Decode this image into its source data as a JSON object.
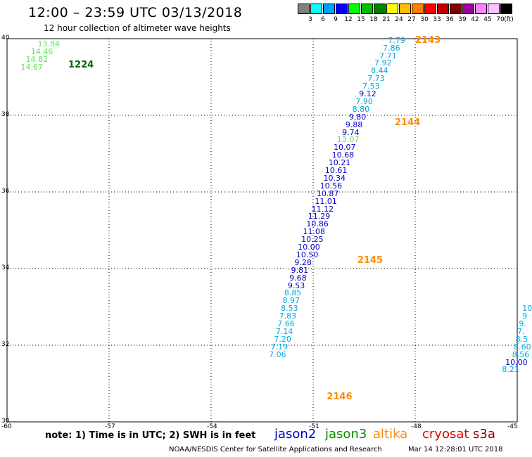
{
  "header": {
    "title": "12:00 – 23:59 UTC 03/13/2018",
    "subtitle": "12 hour collection of altimeter wave heights"
  },
  "colorbar": {
    "unit": "(ft)",
    "cells": [
      {
        "color": "#808080",
        "label": "3"
      },
      {
        "color": "#00ffff",
        "label": "6"
      },
      {
        "color": "#00a0ff",
        "label": "9"
      },
      {
        "color": "#0000ff",
        "label": "12"
      },
      {
        "color": "#00ff00",
        "label": "15"
      },
      {
        "color": "#00c000",
        "label": "18"
      },
      {
        "color": "#008000",
        "label": "21"
      },
      {
        "color": "#ffff00",
        "label": "24"
      },
      {
        "color": "#ffc000",
        "label": "27"
      },
      {
        "color": "#ff8000",
        "label": "30"
      },
      {
        "color": "#ff0000",
        "label": "33"
      },
      {
        "color": "#c00000",
        "label": "36"
      },
      {
        "color": "#800000",
        "label": "39"
      },
      {
        "color": "#a000a0",
        "label": "42"
      },
      {
        "color": "#ff80ff",
        "label": "45"
      },
      {
        "color": "#ffc0ff",
        "label": "70"
      },
      {
        "color": "#000000",
        "label": ""
      }
    ]
  },
  "axes": {
    "lon_ticks": [
      "-60",
      "-57",
      "-54",
      "-51",
      "-48",
      "-45"
    ],
    "lat_ticks": [
      "40",
      "38",
      "36",
      "34",
      "32",
      "30"
    ],
    "lon_range": [
      -60,
      -45
    ],
    "lat_range": [
      30,
      40
    ]
  },
  "colors": {
    "jason2": "#0000c8",
    "jason3": "#009000",
    "altika": "#ff8c00",
    "cryosat": "#e00000",
    "s3a": "#8b0000",
    "light_blue": "#00a8e0",
    "light_green": "#60e060",
    "dark_green": "#006400"
  },
  "pass_labels": [
    {
      "text": "1224",
      "lon": -58.2,
      "lat": 39.3,
      "color": "dark_green"
    },
    {
      "text": "2143",
      "lon": -48.0,
      "lat": 39.95,
      "color": "altika"
    },
    {
      "text": "2144",
      "lon": -48.6,
      "lat": 37.8,
      "color": "altika"
    },
    {
      "text": "2145",
      "lon": -49.7,
      "lat": 34.2,
      "color": "altika"
    },
    {
      "text": "2146",
      "lon": -50.6,
      "lat": 30.65,
      "color": "altika"
    }
  ],
  "readings": [
    {
      "value": "13.94",
      "lon": -59.1,
      "lat": 39.85,
      "color": "light_green"
    },
    {
      "value": "14.46",
      "lon": -59.3,
      "lat": 39.65,
      "color": "light_green"
    },
    {
      "value": "14.82",
      "lon": -59.45,
      "lat": 39.45,
      "color": "light_green"
    },
    {
      "value": "14.67",
      "lon": -59.6,
      "lat": 39.25,
      "color": "light_green"
    },
    {
      "value": "7.79",
      "lon": -48.8,
      "lat": 39.95,
      "color": "light_blue"
    },
    {
      "value": "7.86",
      "lon": -48.95,
      "lat": 39.75,
      "color": "light_blue"
    },
    {
      "value": "7.71",
      "lon": -49.05,
      "lat": 39.55,
      "color": "light_blue"
    },
    {
      "value": "7.92",
      "lon": -49.2,
      "lat": 39.35,
      "color": "light_blue"
    },
    {
      "value": "8.44",
      "lon": -49.3,
      "lat": 39.15,
      "color": "light_blue"
    },
    {
      "value": "7.73",
      "lon": -49.4,
      "lat": 38.95,
      "color": "light_blue"
    },
    {
      "value": "7.53",
      "lon": -49.55,
      "lat": 38.75,
      "color": "light_blue"
    },
    {
      "value": "9.12",
      "lon": -49.65,
      "lat": 38.55,
      "color": "jason2"
    },
    {
      "value": "7.90",
      "lon": -49.75,
      "lat": 38.35,
      "color": "light_blue"
    },
    {
      "value": "8.80",
      "lon": -49.85,
      "lat": 38.15,
      "color": "light_blue"
    },
    {
      "value": "9.80",
      "lon": -49.95,
      "lat": 37.95,
      "color": "jason2"
    },
    {
      "value": "9.88",
      "lon": -50.05,
      "lat": 37.75,
      "color": "jason2"
    },
    {
      "value": "9.74",
      "lon": -50.15,
      "lat": 37.55,
      "color": "jason2"
    },
    {
      "value": "13.07",
      "lon": -50.3,
      "lat": 37.35,
      "color": "light_green"
    },
    {
      "value": "10.07",
      "lon": -50.4,
      "lat": 37.15,
      "color": "jason2"
    },
    {
      "value": "10.68",
      "lon": -50.45,
      "lat": 36.95,
      "color": "jason2"
    },
    {
      "value": "10.21",
      "lon": -50.55,
      "lat": 36.75,
      "color": "jason2"
    },
    {
      "value": "10.61",
      "lon": -50.65,
      "lat": 36.55,
      "color": "jason2"
    },
    {
      "value": "10.34",
      "lon": -50.7,
      "lat": 36.35,
      "color": "jason2"
    },
    {
      "value": "10.56",
      "lon": -50.8,
      "lat": 36.15,
      "color": "jason2"
    },
    {
      "value": "10.87",
      "lon": -50.9,
      "lat": 35.95,
      "color": "jason2"
    },
    {
      "value": "11.01",
      "lon": -50.95,
      "lat": 35.75,
      "color": "jason2"
    },
    {
      "value": "11.12",
      "lon": -51.05,
      "lat": 35.55,
      "color": "jason2"
    },
    {
      "value": "11.29",
      "lon": -51.15,
      "lat": 35.35,
      "color": "jason2"
    },
    {
      "value": "10.86",
      "lon": -51.2,
      "lat": 35.15,
      "color": "jason2"
    },
    {
      "value": "11.08",
      "lon": -51.3,
      "lat": 34.95,
      "color": "jason2"
    },
    {
      "value": "10.25",
      "lon": -51.35,
      "lat": 34.75,
      "color": "jason2"
    },
    {
      "value": "10.00",
      "lon": -51.45,
      "lat": 34.55,
      "color": "jason2"
    },
    {
      "value": "10.50",
      "lon": -51.5,
      "lat": 34.35,
      "color": "jason2"
    },
    {
      "value": "9.28",
      "lon": -51.55,
      "lat": 34.15,
      "color": "jason2"
    },
    {
      "value": "9.81",
      "lon": -51.65,
      "lat": 33.95,
      "color": "jason2"
    },
    {
      "value": "9.68",
      "lon": -51.7,
      "lat": 33.75,
      "color": "jason2"
    },
    {
      "value": "9.53",
      "lon": -51.75,
      "lat": 33.55,
      "color": "jason2"
    },
    {
      "value": "8.85",
      "lon": -51.85,
      "lat": 33.35,
      "color": "light_blue"
    },
    {
      "value": "8.97",
      "lon": -51.9,
      "lat": 33.15,
      "color": "light_blue"
    },
    {
      "value": "8.53",
      "lon": -51.95,
      "lat": 32.95,
      "color": "light_blue"
    },
    {
      "value": "7.83",
      "lon": -52.0,
      "lat": 32.75,
      "color": "light_blue"
    },
    {
      "value": "7.66",
      "lon": -52.05,
      "lat": 32.55,
      "color": "light_blue"
    },
    {
      "value": "7.14",
      "lon": -52.1,
      "lat": 32.35,
      "color": "light_blue"
    },
    {
      "value": "7.20",
      "lon": -52.15,
      "lat": 32.15,
      "color": "light_blue"
    },
    {
      "value": "7.19",
      "lon": -52.25,
      "lat": 31.95,
      "color": "light_blue"
    },
    {
      "value": "7.06",
      "lon": -52.3,
      "lat": 31.75,
      "color": "light_blue"
    },
    {
      "value": "10",
      "lon": -44.85,
      "lat": 32.95,
      "color": "light_blue"
    },
    {
      "value": "9",
      "lon": -44.85,
      "lat": 32.75,
      "color": "light_blue"
    },
    {
      "value": "9.",
      "lon": -44.95,
      "lat": 32.55,
      "color": "light_blue"
    },
    {
      "value": "7.",
      "lon": -45.0,
      "lat": 32.35,
      "color": "light_blue"
    },
    {
      "value": "8.5",
      "lon": -45.05,
      "lat": 32.15,
      "color": "light_blue"
    },
    {
      "value": "8.60",
      "lon": -45.1,
      "lat": 31.95,
      "color": "light_blue"
    },
    {
      "value": "8.56",
      "lon": -45.15,
      "lat": 31.75,
      "color": "light_blue"
    },
    {
      "value": "10.00",
      "lon": -45.35,
      "lat": 31.55,
      "color": "jason2"
    },
    {
      "value": "8.21",
      "lon": -45.45,
      "lat": 31.35,
      "color": "light_blue"
    }
  ],
  "note": "note: 1) Time is in UTC; 2) SWH is in feet",
  "satellites": [
    {
      "name": "jason2",
      "color": "jason2"
    },
    {
      "name": "jason3",
      "color": "jason3"
    },
    {
      "name": "altika",
      "color": "altika"
    },
    {
      "name": "cryosat",
      "color": "cryosat"
    },
    {
      "name": "s3a",
      "color": "s3a"
    }
  ],
  "footer": "NOAA/NESDIS Center for Satellite Applications and Research",
  "timestamp": "Mar 14 12:28:01 UTC 2018"
}
